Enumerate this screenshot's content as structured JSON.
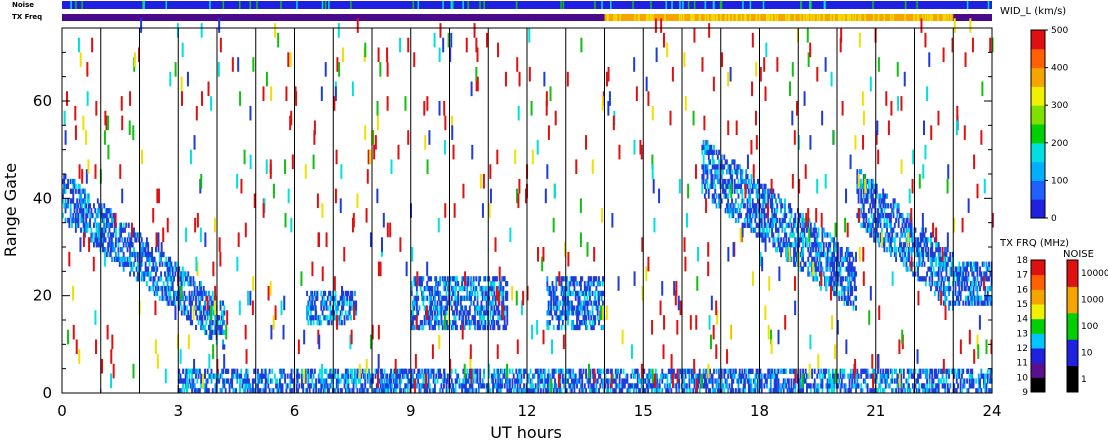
{
  "chart_data": {
    "type": "heatmap",
    "title": "",
    "xlabel": "UT hours",
    "ylabel": "Range Gate",
    "xlim": [
      0,
      24
    ],
    "ylim": [
      0,
      75
    ],
    "x_ticks": [
      0,
      3,
      6,
      9,
      12,
      15,
      18,
      21,
      24
    ],
    "x_tick_labels": [
      "0",
      "3",
      "6",
      "9",
      "12",
      "15",
      "18",
      "21",
      "24"
    ],
    "y_ticks": [
      0,
      20,
      40,
      60
    ],
    "y_tick_labels": [
      "0",
      "20",
      "40",
      "60"
    ],
    "hour_gridlines": [
      1,
      2,
      3,
      4,
      5,
      6,
      7,
      8,
      9,
      10,
      11,
      12,
      13,
      14,
      15,
      16,
      17,
      18,
      19,
      20,
      21,
      22,
      23
    ],
    "top_strips": {
      "noise_label": "Noise",
      "txfreq_label": "TX Freq",
      "noise_color": "#2020e0",
      "txfreq_segments": [
        {
          "start_hour": 0,
          "end_hour": 14,
          "color": "#4b0a8c"
        },
        {
          "start_hour": 14,
          "end_hour": 23,
          "color": "#f5a400"
        },
        {
          "start_hour": 23,
          "end_hour": 24,
          "color": "#4b0a8c"
        }
      ]
    },
    "colorbar_width": {
      "label": "WID_L (km/s)",
      "ticks": [
        "0",
        "100",
        "200",
        "300",
        "400",
        "500"
      ],
      "values": [
        0,
        100,
        200,
        300,
        400,
        500
      ]
    },
    "colorbar_txfreq": {
      "label": "TX FRQ (MHz)",
      "ticks": [
        "9",
        "10",
        "11",
        "12",
        "13",
        "14",
        "15",
        "16",
        "17",
        "18"
      ],
      "colors": [
        "#000000",
        "#5a0f8c",
        "#2020e0",
        "#00c8ff",
        "#00d000",
        "#f0f000",
        "#f5a400",
        "#ff6000",
        "#e01010"
      ]
    },
    "colorbar_noise": {
      "label": "NOISE",
      "ticks": [
        "1",
        "10",
        "100",
        "1000",
        "10000"
      ],
      "colors": [
        "#000000",
        "#2020e0",
        "#00d000",
        "#f5a400",
        "#e01010"
      ]
    },
    "colors": {
      "low_width": "#1e3cdc",
      "mid_width": "#00a0ff",
      "cyan": "#00e0e0",
      "green": "#10c010",
      "yellow": "#f0e000",
      "red": "#e01010"
    },
    "echo_regions": [
      {
        "name": "early band",
        "x_start": 0.0,
        "x_end": 4.2,
        "gate_start_at_x0": 40,
        "gate_end_at_x1": 13,
        "thickness": 8,
        "density": "high"
      },
      {
        "name": "morning patch",
        "x_start": 6.3,
        "x_end": 7.6,
        "gate_center": 17,
        "thickness": 6,
        "density": "high"
      },
      {
        "name": "mid-day patch",
        "x_start": 9.0,
        "x_end": 11.5,
        "gate_center": 18,
        "thickness": 9,
        "density": "high"
      },
      {
        "name": "noon patch",
        "x_start": 12.5,
        "x_end": 14.0,
        "gate_center": 18,
        "thickness": 9,
        "density": "high"
      },
      {
        "name": "afternoon band",
        "x_start": 16.5,
        "x_end": 20.5,
        "gate_start_at_x0": 46,
        "gate_end_at_x1": 22,
        "thickness": 10,
        "density": "high"
      },
      {
        "name": "evening band",
        "x_start": 20.5,
        "x_end": 23.0,
        "gate_start_at_x0": 40,
        "gate_end_at_x1": 22,
        "thickness": 10,
        "density": "high"
      },
      {
        "name": "late patch",
        "x_start": 23.0,
        "x_end": 24.0,
        "gate_center": 22,
        "thickness": 8,
        "density": "high"
      },
      {
        "name": "near-range",
        "x_start": 3.0,
        "x_end": 24.0,
        "gate_center": 2,
        "thickness": 4,
        "density": "high"
      }
    ]
  }
}
